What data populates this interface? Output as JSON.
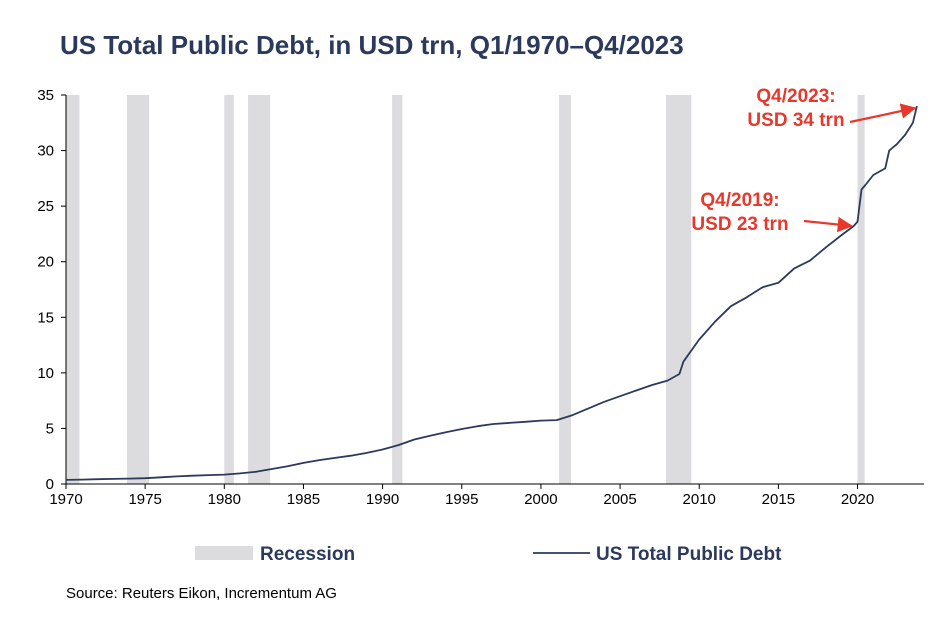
{
  "chart_data": {
    "type": "line",
    "title": "US Total Public Debt, in USD trn, Q1/1970–Q4/2023",
    "xlabel": "",
    "ylabel": "",
    "xlim": [
      1970,
      2024.2
    ],
    "ylim": [
      0,
      35
    ],
    "x_ticks": [
      1970,
      1975,
      1980,
      1985,
      1990,
      1995,
      2000,
      2005,
      2010,
      2015,
      2020
    ],
    "y_ticks": [
      0,
      5,
      10,
      15,
      20,
      25,
      30,
      35
    ],
    "grid": false,
    "legend_position": "bottom",
    "series": [
      {
        "name": "US Total Public Debt",
        "color": "#2b3a5c",
        "x": [
          1970.0,
          1971.0,
          1972.0,
          1973.0,
          1974.0,
          1975.0,
          1976.0,
          1977.0,
          1978.0,
          1979.0,
          1980.0,
          1981.0,
          1982.0,
          1983.0,
          1984.0,
          1985.0,
          1986.0,
          1987.0,
          1988.0,
          1989.0,
          1990.0,
          1991.0,
          1992.0,
          1993.0,
          1994.0,
          1995.0,
          1996.0,
          1997.0,
          1998.0,
          1999.0,
          2000.0,
          2001.0,
          2002.0,
          2003.0,
          2004.0,
          2005.0,
          2006.0,
          2007.0,
          2008.0,
          2008.75,
          2009.0,
          2010.0,
          2011.0,
          2012.0,
          2013.0,
          2014.0,
          2015.0,
          2016.0,
          2017.0,
          2018.0,
          2019.0,
          2019.75,
          2020.0,
          2020.25,
          2020.5,
          2021.0,
          2021.75,
          2022.0,
          2022.5,
          2023.0,
          2023.5,
          2023.75
        ],
        "values": [
          0.37,
          0.4,
          0.43,
          0.46,
          0.49,
          0.52,
          0.6,
          0.68,
          0.75,
          0.8,
          0.85,
          0.95,
          1.1,
          1.35,
          1.6,
          1.9,
          2.15,
          2.35,
          2.55,
          2.8,
          3.1,
          3.5,
          4.0,
          4.35,
          4.65,
          4.95,
          5.2,
          5.4,
          5.5,
          5.6,
          5.7,
          5.75,
          6.2,
          6.8,
          7.4,
          7.9,
          8.4,
          8.9,
          9.3,
          9.9,
          11.0,
          13.0,
          14.6,
          16.0,
          16.8,
          17.7,
          18.1,
          19.4,
          20.1,
          21.3,
          22.4,
          23.2,
          23.6,
          26.5,
          26.9,
          27.8,
          28.4,
          30.0,
          30.6,
          31.4,
          32.5,
          34.0
        ]
      }
    ],
    "recessions": [
      {
        "start": 1970.0,
        "end": 1970.85
      },
      {
        "start": 1973.85,
        "end": 1975.25
      },
      {
        "start": 1980.0,
        "end": 1980.6
      },
      {
        "start": 1981.5,
        "end": 1982.9
      },
      {
        "start": 1990.6,
        "end": 1991.25
      },
      {
        "start": 2001.15,
        "end": 2001.9
      },
      {
        "start": 2007.9,
        "end": 2009.5
      },
      {
        "start": 2020.0,
        "end": 2020.45
      }
    ],
    "recession_color": "#dcdbde",
    "annotations": [
      {
        "lines": [
          "Q4/2023:",
          "USD 34 trn"
        ],
        "color": "#e8372b",
        "target_x": 2023.75,
        "target_y": 34.0
      },
      {
        "lines": [
          "Q4/2019:",
          "USD 23 trn"
        ],
        "color": "#e8372b",
        "target_x": 2019.75,
        "target_y": 23.4
      }
    ],
    "legend": {
      "recession_label": "Recession",
      "series_label": "US Total Public Debt"
    }
  },
  "source": "Source: Reuters Eikon, Incrementum AG"
}
